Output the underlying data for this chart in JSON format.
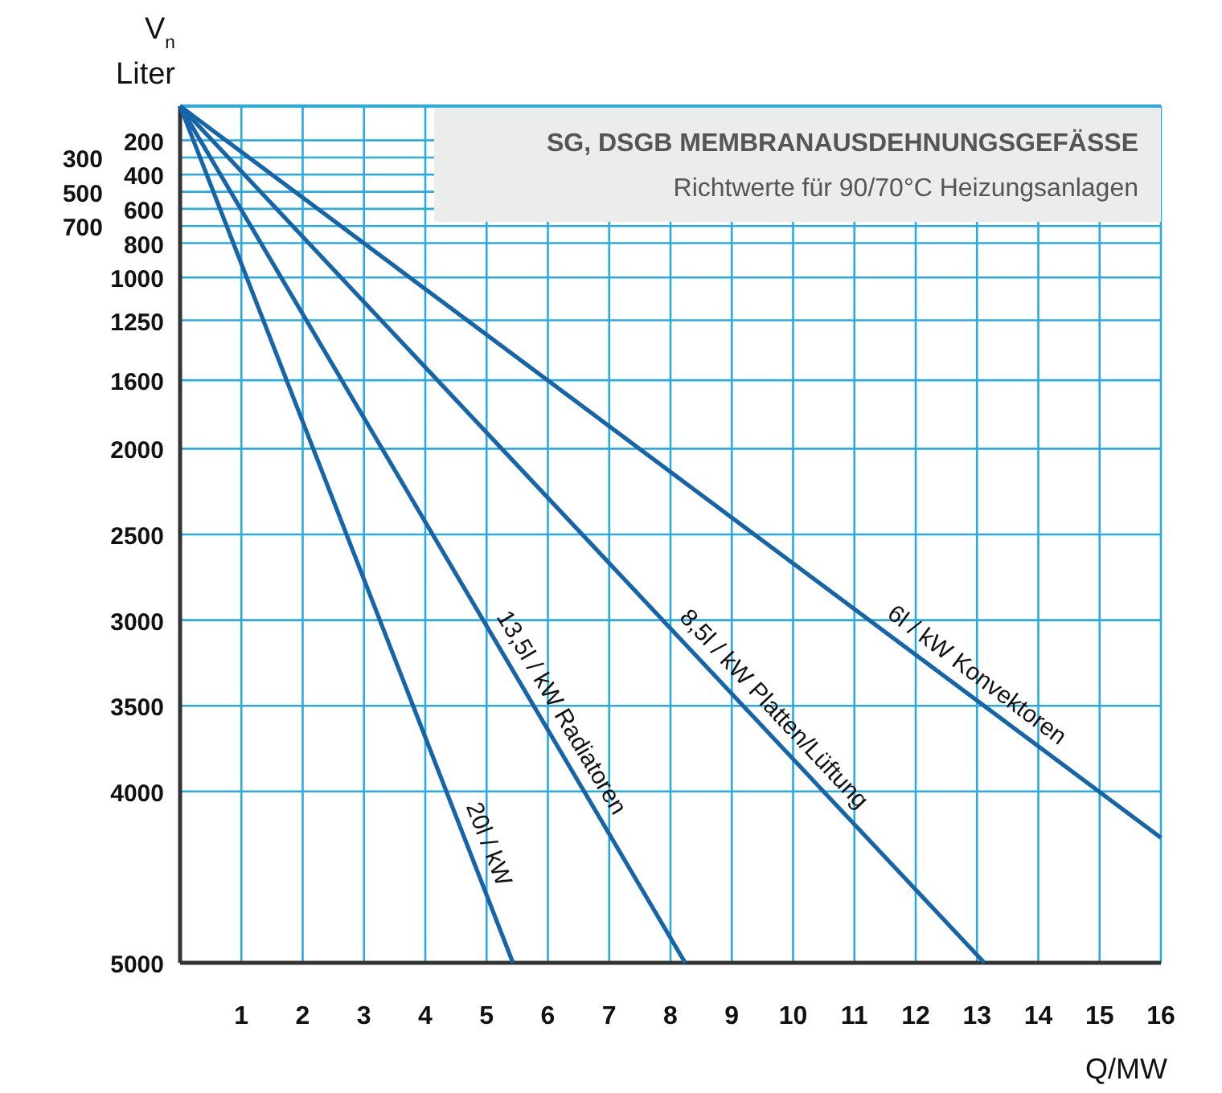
{
  "chart_data": {
    "type": "line",
    "title": "SG, DSGB MEMBRANAUSDEHNUNGSGEFÄSSE",
    "subtitle": "Richtwerte für 90/70°C Heizungsanlagen",
    "xlabel": "Q/MW",
    "ylabel": "V$_{n}$ Liter",
    "xlim": [
      0,
      16
    ],
    "xticks": [
      1,
      2,
      3,
      4,
      5,
      6,
      7,
      8,
      9,
      10,
      11,
      12,
      13,
      14,
      15,
      16
    ],
    "ylim": [
      5000,
      0
    ],
    "yticks": [
      200,
      400,
      600,
      800,
      1000,
      1250,
      1600,
      2000,
      2500,
      3000,
      3500,
      4000,
      5000
    ],
    "y2lim": [
      5000,
      0
    ],
    "y2ticks": [
      300,
      500,
      700
    ],
    "grid": true,
    "marker": "none",
    "line_style": "solid",
    "series": [
      {
        "name": "20l / kW",
        "color": "#1565a8",
        "x": [
          0,
          5.43
        ],
        "values": [
          0,
          5000
        ]
      },
      {
        "name": "13,5l / kW Radiatoren",
        "color": "#1565a8",
        "x": [
          0,
          8.24
        ],
        "values": [
          0,
          5000
        ]
      },
      {
        "name": "8,5l / kW Platten/Lüftung",
        "color": "#1565a8",
        "x": [
          0,
          13.12
        ],
        "values": [
          0,
          5000
        ]
      },
      {
        "name": "6l / kW Konvektoren",
        "color": "#1565a8",
        "x": [
          0,
          16
        ],
        "values": [
          0,
          4270
        ]
      }
    ]
  }
}
